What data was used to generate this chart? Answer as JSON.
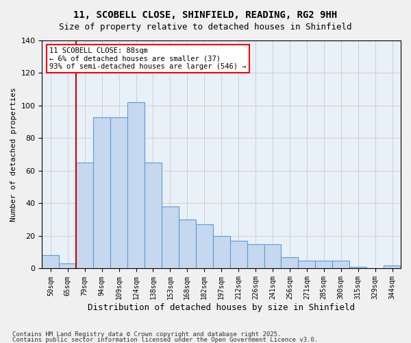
{
  "title1": "11, SCOBELL CLOSE, SHINFIELD, READING, RG2 9HH",
  "title2": "Size of property relative to detached houses in Shinfield",
  "xlabel": "Distribution of detached houses by size in Shinfield",
  "ylabel": "Number of detached properties",
  "footer1": "Contains HM Land Registry data © Crown copyright and database right 2025.",
  "footer2": "Contains public sector information licensed under the Open Government Licence v3.0.",
  "annotation_line1": "11 SCOBELL CLOSE: 88sqm",
  "annotation_line2": "← 6% of detached houses are smaller (37)",
  "annotation_line3": "93% of semi-detached houses are larger (546) →",
  "bar_color": "#c5d8f0",
  "bar_edge_color": "#5b9bd5",
  "vline_color": "#cc0000",
  "vline_x": 1,
  "categories": [
    "50sqm",
    "65sqm",
    "79sqm",
    "94sqm",
    "109sqm",
    "124sqm",
    "138sqm",
    "153sqm",
    "168sqm",
    "182sqm",
    "197sqm",
    "212sqm",
    "226sqm",
    "241sqm",
    "256sqm",
    "271sqm",
    "285sqm",
    "300sqm",
    "315sqm",
    "329sqm",
    "344sqm"
  ],
  "values": [
    8,
    3,
    65,
    93,
    93,
    102,
    65,
    38,
    30,
    27,
    20,
    17,
    15,
    15,
    7,
    5,
    5,
    5,
    1,
    0,
    2
  ],
  "ylim": [
    0,
    140
  ],
  "yticks": [
    0,
    20,
    40,
    60,
    80,
    100,
    120,
    140
  ],
  "grid_color": "#d0d0d0",
  "bg_color": "#e8f0f8"
}
